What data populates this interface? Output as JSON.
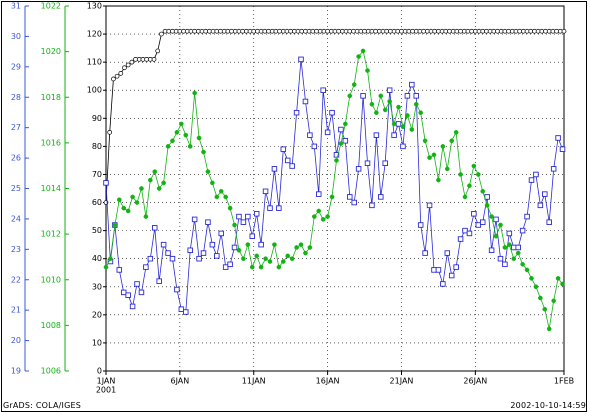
{
  "footer": {
    "left": "GrADS: COLA/IGES",
    "right": "2002-10-10-14:59"
  },
  "colors": {
    "series_blue": "#2a2ad8",
    "series_green": "#13b313",
    "series_black": "#000000",
    "axis_blue_labels": "#3a58d8",
    "axis_green_labels": "#13b313",
    "grid": "#000000"
  },
  "chart_data": {
    "type": "line",
    "grid": true,
    "x_ticks": [
      "1JAN",
      "6JAN",
      "11JAN",
      "16JAN",
      "21JAN",
      "26JAN",
      "1FEB"
    ],
    "x_tick_days": [
      0,
      5,
      10,
      15,
      20,
      25,
      31
    ],
    "x_year_label": "2001",
    "xlim_days": [
      0,
      31
    ],
    "axes": [
      {
        "id": "left_blue",
        "color": "#3a58d8",
        "range": [
          19,
          31
        ],
        "ticks": [
          19,
          20,
          21,
          22,
          23,
          24,
          25,
          26,
          27,
          28,
          29,
          30,
          31
        ]
      },
      {
        "id": "left_green",
        "color": "#13b313",
        "range": [
          1006,
          1022
        ],
        "ticks": [
          1006,
          1008,
          1010,
          1012,
          1014,
          1016,
          1018,
          1020,
          1022
        ]
      },
      {
        "id": "main_black",
        "color": "#000000",
        "range": [
          0,
          130
        ],
        "ticks": [
          0,
          10,
          20,
          30,
          40,
          50,
          60,
          70,
          80,
          90,
          100,
          110,
          120,
          130
        ]
      }
    ],
    "series": [
      {
        "id": "black_circles",
        "axis": "main_black",
        "marker": "circle",
        "color": "#000000",
        "points": [
          [
            0.0,
            60
          ],
          [
            0.25,
            85
          ],
          [
            0.5,
            104
          ],
          [
            0.75,
            105
          ],
          [
            1.0,
            106
          ],
          [
            1.25,
            108
          ],
          [
            1.5,
            109
          ],
          [
            1.75,
            110
          ],
          [
            2.0,
            111
          ],
          [
            2.25,
            111
          ],
          [
            2.5,
            111
          ],
          [
            2.75,
            111
          ],
          [
            3.0,
            111
          ],
          [
            3.25,
            111
          ],
          [
            3.5,
            114
          ],
          [
            3.75,
            120
          ],
          [
            4.0,
            121
          ],
          [
            31.0,
            121
          ]
        ],
        "step": 0.25
      },
      {
        "id": "blue_squares",
        "axis": "main_black",
        "marker": "square",
        "color": "#2a2ad8",
        "days": [
          0.0,
          0.3,
          0.6,
          0.9,
          1.2,
          1.5,
          1.8,
          2.1,
          2.4,
          2.7,
          3.0,
          3.3,
          3.6,
          3.9,
          4.2,
          4.5,
          4.8,
          5.1,
          5.4,
          5.7,
          6.0,
          6.3,
          6.6,
          6.9,
          7.2,
          7.5,
          7.8,
          8.1,
          8.4,
          8.7,
          9.0,
          9.3,
          9.6,
          9.9,
          10.2,
          10.5,
          10.8,
          11.1,
          11.4,
          11.7,
          12.0,
          12.3,
          12.6,
          12.9,
          13.2,
          13.5,
          13.8,
          14.1,
          14.4,
          14.7,
          15.0,
          15.3,
          15.6,
          15.9,
          16.2,
          16.5,
          16.8,
          17.1,
          17.4,
          17.7,
          18.0,
          18.3,
          18.6,
          18.9,
          19.2,
          19.5,
          19.8,
          20.1,
          20.4,
          20.7,
          21.0,
          21.3,
          21.6,
          21.9,
          22.2,
          22.5,
          22.8,
          23.1,
          23.4,
          23.7,
          24.0,
          24.3,
          24.6,
          24.9,
          25.2,
          25.5,
          25.8,
          26.1,
          26.4,
          26.7,
          27.0,
          27.3,
          27.6,
          27.9,
          28.2,
          28.5,
          28.8,
          29.1,
          29.4,
          29.7,
          30.0,
          30.3,
          30.6,
          30.9
        ],
        "values": [
          67,
          39,
          52,
          36,
          28,
          27,
          23,
          31,
          28,
          37,
          40,
          51,
          32,
          45,
          42,
          40,
          29,
          22,
          21,
          43,
          54,
          40,
          42,
          53,
          45,
          41,
          49,
          37,
          38,
          44,
          55,
          53,
          55,
          48,
          56,
          45,
          64,
          58,
          72,
          58,
          79,
          75,
          73,
          92,
          111,
          96,
          84,
          80,
          63,
          100,
          85,
          92,
          77,
          86,
          82,
          62,
          60,
          72,
          98,
          74,
          59,
          84,
          62,
          74,
          100,
          84,
          88,
          80,
          98,
          102,
          98,
          52,
          42,
          59,
          36,
          36,
          31,
          42,
          34,
          37,
          47,
          50,
          49,
          56,
          52,
          53,
          62,
          43,
          54,
          40,
          38,
          49,
          44,
          44,
          50,
          55,
          68,
          70,
          59,
          63,
          53,
          72,
          83,
          79
        ],
        "step": 0.3
      },
      {
        "id": "green_dots",
        "axis": "main_black",
        "marker": "dot",
        "color": "#13b313",
        "days": [
          0.0,
          0.3,
          0.6,
          0.9,
          1.2,
          1.5,
          1.8,
          2.1,
          2.4,
          2.7,
          3.0,
          3.3,
          3.6,
          3.9,
          4.2,
          4.5,
          4.8,
          5.1,
          5.4,
          5.7,
          6.0,
          6.3,
          6.6,
          6.9,
          7.2,
          7.5,
          7.8,
          8.1,
          8.4,
          8.7,
          9.0,
          9.3,
          9.6,
          9.9,
          10.2,
          10.5,
          10.8,
          11.1,
          11.4,
          11.7,
          12.0,
          12.3,
          12.6,
          12.9,
          13.2,
          13.5,
          13.8,
          14.1,
          14.4,
          14.7,
          15.0,
          15.3,
          15.6,
          15.9,
          16.2,
          16.5,
          16.8,
          17.1,
          17.4,
          17.7,
          18.0,
          18.3,
          18.6,
          18.9,
          19.2,
          19.5,
          19.8,
          20.1,
          20.4,
          20.7,
          21.0,
          21.3,
          21.6,
          21.9,
          22.2,
          22.5,
          22.8,
          23.1,
          23.4,
          23.7,
          24.0,
          24.3,
          24.6,
          24.9,
          25.2,
          25.5,
          25.8,
          26.1,
          26.4,
          26.7,
          27.0,
          27.3,
          27.6,
          27.9,
          28.2,
          28.5,
          28.8,
          29.1,
          29.4,
          29.7,
          30.0,
          30.3,
          30.6,
          30.9
        ],
        "values": [
          37,
          40,
          52,
          61,
          58,
          57,
          62,
          60,
          65,
          55,
          68,
          71,
          65,
          67,
          80,
          82,
          85,
          88,
          84,
          80,
          99,
          83,
          78,
          71,
          67,
          62,
          64,
          62,
          58,
          52,
          43,
          40,
          45,
          37,
          41,
          37,
          40,
          39,
          45,
          37,
          39,
          41,
          40,
          44,
          45,
          42,
          44,
          55,
          57,
          54,
          55,
          62,
          75,
          81,
          88,
          98,
          102,
          112,
          114,
          107,
          95,
          92,
          98,
          93,
          96,
          88,
          94,
          87,
          91,
          86,
          95,
          92,
          82,
          76,
          77,
          68,
          80,
          72,
          82,
          85,
          70,
          62,
          66,
          73,
          70,
          64,
          59,
          55,
          48,
          52,
          44,
          45,
          40,
          42,
          38,
          36,
          33,
          30,
          26,
          22,
          15,
          25,
          33,
          31
        ],
        "step": 0.3
      }
    ]
  }
}
